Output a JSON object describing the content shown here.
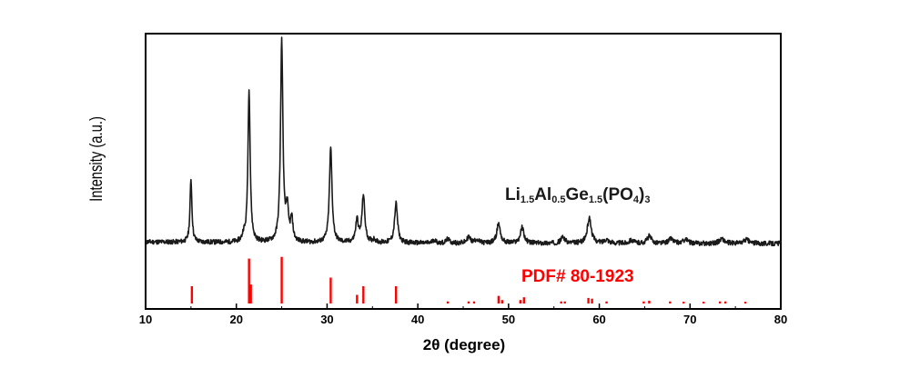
{
  "chart_data": {
    "type": "line",
    "title": "",
    "xlabel": "2θ (degree)",
    "ylabel": "Intensity (a.u.)",
    "xlim": [
      10,
      80
    ],
    "xticks": [
      10,
      20,
      30,
      40,
      50,
      60,
      70,
      80
    ],
    "y_ticks_shown": false,
    "grid": false,
    "series": [
      {
        "name": "Li1.5Al0.5Ge1.5(PO4)3",
        "label_parts": [
          {
            "text": "Li",
            "sub": false
          },
          {
            "text": "1.5",
            "sub": true
          },
          {
            "text": "Al",
            "sub": false
          },
          {
            "text": "0.5",
            "sub": true
          },
          {
            "text": "Ge",
            "sub": false
          },
          {
            "text": "1.5",
            "sub": true
          },
          {
            "text": "(PO",
            "sub": false
          },
          {
            "text": "4",
            "sub": true
          },
          {
            "text": ")",
            "sub": false
          },
          {
            "text": "3",
            "sub": true
          }
        ],
        "color": "#1a1a1a",
        "baseline": 0.25,
        "peaks": [
          {
            "x": 15.0,
            "h": 0.8
          },
          {
            "x": 20.8,
            "h": 0.08
          },
          {
            "x": 21.4,
            "h": 1.95
          },
          {
            "x": 25.0,
            "h": 2.55
          },
          {
            "x": 25.6,
            "h": 0.4
          },
          {
            "x": 26.1,
            "h": 0.28
          },
          {
            "x": 30.4,
            "h": 1.2
          },
          {
            "x": 33.3,
            "h": 0.28
          },
          {
            "x": 34.0,
            "h": 0.6
          },
          {
            "x": 35.2,
            "h": 0.04
          },
          {
            "x": 37.6,
            "h": 0.5
          },
          {
            "x": 41.8,
            "h": 0.04
          },
          {
            "x": 43.3,
            "h": 0.05
          },
          {
            "x": 45.6,
            "h": 0.08
          },
          {
            "x": 46.5,
            "h": 0.05
          },
          {
            "x": 48.9,
            "h": 0.25
          },
          {
            "x": 51.5,
            "h": 0.2
          },
          {
            "x": 56.0,
            "h": 0.08
          },
          {
            "x": 58.9,
            "h": 0.32
          },
          {
            "x": 60.8,
            "h": 0.05
          },
          {
            "x": 63.5,
            "h": 0.04
          },
          {
            "x": 65.5,
            "h": 0.09
          },
          {
            "x": 67.9,
            "h": 0.06
          },
          {
            "x": 69.5,
            "h": 0.05
          },
          {
            "x": 73.5,
            "h": 0.06
          },
          {
            "x": 76.2,
            "h": 0.05
          }
        ]
      },
      {
        "name": "PDF# 80-1923",
        "type": "stick",
        "color": "#ff0000",
        "sticks": [
          {
            "x": 15.1,
            "h": 0.5
          },
          {
            "x": 21.4,
            "h": 1.3
          },
          {
            "x": 21.6,
            "h": 0.55
          },
          {
            "x": 25.0,
            "h": 1.35
          },
          {
            "x": 30.4,
            "h": 0.75
          },
          {
            "x": 33.3,
            "h": 0.25
          },
          {
            "x": 34.0,
            "h": 0.5
          },
          {
            "x": 37.6,
            "h": 0.5
          },
          {
            "x": 43.3,
            "h": 0.06
          },
          {
            "x": 45.6,
            "h": 0.06
          },
          {
            "x": 46.2,
            "h": 0.06
          },
          {
            "x": 48.9,
            "h": 0.22
          },
          {
            "x": 49.3,
            "h": 0.1
          },
          {
            "x": 51.3,
            "h": 0.1
          },
          {
            "x": 51.7,
            "h": 0.18
          },
          {
            "x": 55.8,
            "h": 0.06
          },
          {
            "x": 56.2,
            "h": 0.06
          },
          {
            "x": 58.8,
            "h": 0.16
          },
          {
            "x": 59.2,
            "h": 0.14
          },
          {
            "x": 60.8,
            "h": 0.06
          },
          {
            "x": 64.9,
            "h": 0.06
          },
          {
            "x": 65.5,
            "h": 0.08
          },
          {
            "x": 67.8,
            "h": 0.06
          },
          {
            "x": 69.3,
            "h": 0.05
          },
          {
            "x": 71.5,
            "h": 0.05
          },
          {
            "x": 73.3,
            "h": 0.06
          },
          {
            "x": 73.9,
            "h": 0.06
          },
          {
            "x": 76.1,
            "h": 0.05
          }
        ]
      }
    ]
  }
}
